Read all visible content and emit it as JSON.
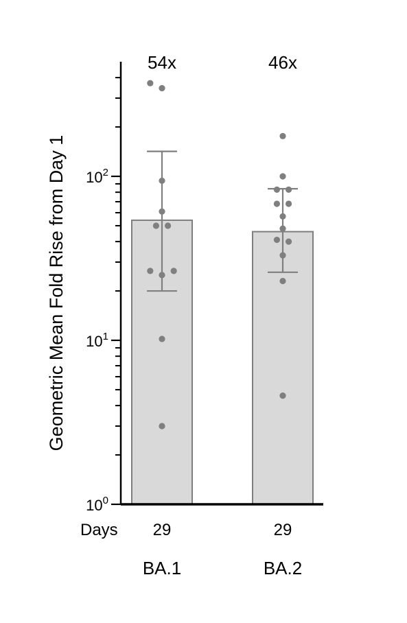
{
  "chart_data": {
    "type": "bar",
    "ylabel": "Geometric Mean Fold Rise from Day 1",
    "yscale": "log",
    "ylim": [
      1,
      500
    ],
    "y_ticks": [
      {
        "base": "10",
        "exp": "0"
      },
      {
        "base": "10",
        "exp": "1"
      },
      {
        "base": "10",
        "exp": "2"
      }
    ],
    "x_row_label": "Days",
    "grid": false,
    "colors": {
      "bar_fill": "#d9d9d9",
      "bar_stroke": "#7f7f7f",
      "points": "#7f7f7f",
      "axis": "#000000"
    },
    "groups": [
      {
        "name": "BA.1",
        "day": "29",
        "annotation": "54x",
        "value": 54,
        "error": [
          20,
          142
        ],
        "points": [
          {
            "x": -0.22,
            "y": 370
          },
          {
            "x": 0.0,
            "y": 345
          },
          {
            "x": 0.0,
            "y": 94
          },
          {
            "x": 0.0,
            "y": 61
          },
          {
            "x": -0.11,
            "y": 50
          },
          {
            "x": 0.11,
            "y": 50
          },
          {
            "x": -0.22,
            "y": 26.5
          },
          {
            "x": 0.0,
            "y": 25
          },
          {
            "x": 0.22,
            "y": 26.5
          },
          {
            "x": 0.0,
            "y": 10.2
          },
          {
            "x": 0.0,
            "y": 3.0
          }
        ]
      },
      {
        "name": "BA.2",
        "day": "29",
        "annotation": "46x",
        "value": 46,
        "error": [
          26,
          84
        ],
        "points": [
          {
            "x": 0.0,
            "y": 176
          },
          {
            "x": 0.0,
            "y": 100
          },
          {
            "x": -0.11,
            "y": 83
          },
          {
            "x": 0.11,
            "y": 83
          },
          {
            "x": -0.11,
            "y": 68
          },
          {
            "x": 0.11,
            "y": 68
          },
          {
            "x": 0.0,
            "y": 57
          },
          {
            "x": 0.0,
            "y": 48
          },
          {
            "x": -0.11,
            "y": 41
          },
          {
            "x": 0.11,
            "y": 40
          },
          {
            "x": 0.0,
            "y": 33
          },
          {
            "x": 0.0,
            "y": 23
          },
          {
            "x": 0.0,
            "y": 4.6
          }
        ]
      }
    ]
  }
}
